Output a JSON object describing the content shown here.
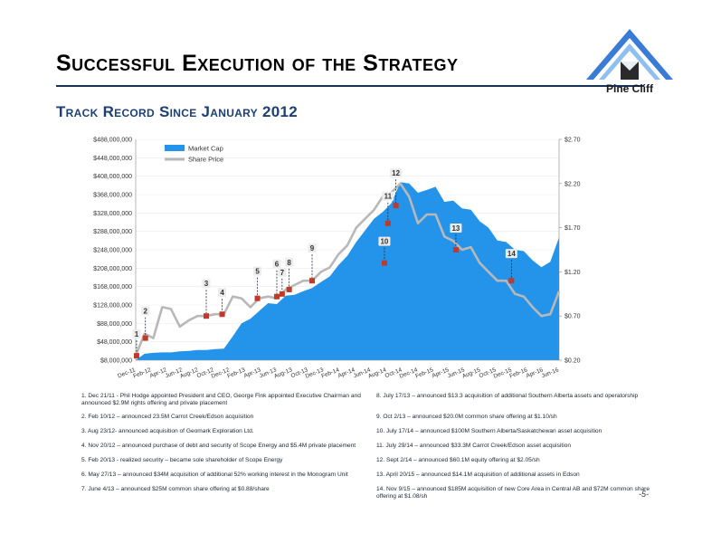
{
  "header": {
    "title": "Successful Execution of the Strategy",
    "subtitle": "Track Record Since January 2012",
    "logo_text": "Pine Cliff"
  },
  "page_number": "-5-",
  "colors": {
    "market_cap": "#2493ea",
    "share_price": "#b8b8b8",
    "marker": "#c0392b",
    "title_rule": "#16335a",
    "subtitle": "#1c3f74"
  },
  "chart_data": {
    "type": "area",
    "title": "",
    "xlabel": "",
    "ylabel": "",
    "ylim": [
      8000000,
      488000000
    ],
    "y2lim": [
      0.2,
      2.7
    ],
    "y_ticks": [
      "$8,000,000",
      "$48,000,000",
      "$88,000,000",
      "$128,000,000",
      "$168,000,000",
      "$208,000,000",
      "$248,000,000",
      "$288,000,000",
      "$328,000,000",
      "$368,000,000",
      "$408,000,000",
      "$448,000,000",
      "$488,000,000"
    ],
    "y2_ticks": [
      "$0.20",
      "$0.70",
      "$1.20",
      "$1.70",
      "$2.20",
      "$2.70"
    ],
    "x_ticks": [
      "Dec-11",
      "Feb-12",
      "Apr-12",
      "Jun-12",
      "Aug-12",
      "Oct-12",
      "Dec-12",
      "Feb-13",
      "Apr-13",
      "Jun-13",
      "Aug-13",
      "Oct-13",
      "Dec-13",
      "Feb-14",
      "Apr-14",
      "Jun-14",
      "Aug-14",
      "Oct-14",
      "Dec-14",
      "Feb-15",
      "Apr-15",
      "Jun-15",
      "Aug-15",
      "Oct-15",
      "Dec-15",
      "Feb-16",
      "Apr-16",
      "Jun-16"
    ],
    "legend": [
      "Market Cap",
      "Share Price"
    ],
    "legend_position": "top-left",
    "series": [
      {
        "name": "Market Cap",
        "axis": "left",
        "values": [
          8000000,
          22000000,
          24000000,
          25000000,
          25000000,
          27000000,
          28000000,
          30000000,
          30000000,
          32000000,
          33000000,
          60000000,
          88000000,
          98000000,
          115000000,
          132000000,
          130000000,
          148000000,
          150000000,
          158000000,
          165000000,
          178000000,
          190000000,
          215000000,
          235000000,
          265000000,
          290000000,
          315000000,
          330000000,
          350000000,
          395000000,
          392000000,
          372000000,
          378000000,
          385000000,
          352000000,
          355000000,
          338000000,
          335000000,
          310000000,
          296000000,
          268000000,
          265000000,
          248000000,
          245000000,
          225000000,
          210000000,
          222000000,
          275000000
        ]
      },
      {
        "name": "Share Price",
        "axis": "right",
        "values": [
          0.25,
          0.5,
          0.45,
          0.8,
          0.78,
          0.58,
          0.65,
          0.7,
          0.7,
          0.72,
          0.72,
          0.92,
          0.9,
          0.8,
          0.9,
          0.92,
          0.9,
          1.0,
          1.05,
          1.1,
          1.1,
          1.2,
          1.25,
          1.4,
          1.5,
          1.7,
          1.8,
          1.9,
          2.05,
          2.1,
          2.2,
          2.05,
          1.75,
          1.85,
          1.85,
          1.6,
          1.55,
          1.45,
          1.48,
          1.3,
          1.2,
          1.1,
          1.1,
          0.95,
          0.92,
          0.8,
          0.7,
          0.72,
          0.98
        ]
      }
    ],
    "event_markers": [
      {
        "label": "1",
        "index": 0.1,
        "price": 0.25
      },
      {
        "label": "2",
        "index": 1.1,
        "price": 0.45
      },
      {
        "label": "3",
        "index": 8.0,
        "price": 0.7
      },
      {
        "label": "4",
        "index": 9.8,
        "price": 0.72
      },
      {
        "label": "5",
        "index": 13.8,
        "price": 0.9
      },
      {
        "label": "6",
        "index": 16.0,
        "price": 0.92
      },
      {
        "label": "7",
        "index": 16.6,
        "price": 0.95
      },
      {
        "label": "8",
        "index": 17.4,
        "price": 1.0
      },
      {
        "label": "9",
        "index": 20.0,
        "price": 1.1
      },
      {
        "label": "10",
        "index": 28.2,
        "price": 1.3
      },
      {
        "label": "11",
        "index": 28.6,
        "price": 1.75
      },
      {
        "label": "12",
        "index": 29.5,
        "price": 1.95
      },
      {
        "label": "13",
        "index": 36.3,
        "price": 1.45
      },
      {
        "label": "14",
        "index": 42.6,
        "price": 1.1
      }
    ]
  },
  "notes": [
    "1. Dec 21/11 - Phil Hodge appointed President and CEO, George Fink appointed Executive Chairman and announced $2.9M rights offering and private placement",
    "2. Feb 10/12 – announced 23.5M Carrot Creek/Edson acquisition",
    "3. Aug 23/12- announced acquisition of Geomark Exploration Ltd.",
    "4. Nov 20/12 – announced purchase of debt and security of Scope Energy and $5.4M private placement",
    "5. Feb 20/13 - realized security – became sole shareholder of Scope Energy",
    "6. May 27/13 – announced $34M acquisition of additional 52% working interest in the Monogram Unit",
    "7. June 4/13 – announced $25M common share offering at $0.88/share",
    "8. July 17/13 – announced $13.3 acquisition of additional Southern Alberta assets and operatorship",
    "9. Oct 2/13 – announced $20.0M common share offering at $1.10/sh",
    "10. July 17/14 – announced $100M Southern Alberta/Saskatchewan asset acquisition",
    "11. July 29/14 – announced $33.3M Carrot Creek/Edson asset acquisition",
    "12. Sept 2/14 – announced $60.1M equity offering at $2.05/sh",
    "13. April 20/15 – announced $14.1M acquisition of additional assets in Edson",
    "14. Nov 9/15 – announced $185M acquisition of new Core Area in Central AB and $72M common share offering at $1.08/sh"
  ]
}
